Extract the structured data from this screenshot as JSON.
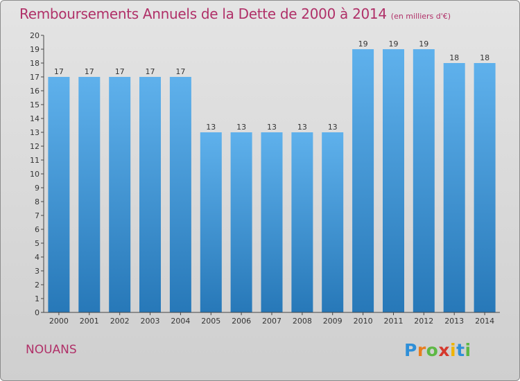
{
  "chart_data": {
    "type": "bar",
    "title": "Remboursements Annuels de la Dette de 2000 à 2014",
    "unit_note": "(en milliers d'€)",
    "categories": [
      "2000",
      "2001",
      "2002",
      "2003",
      "2004",
      "2005",
      "2006",
      "2007",
      "2008",
      "2009",
      "2010",
      "2011",
      "2012",
      "2013",
      "2014"
    ],
    "values": [
      17,
      17,
      17,
      17,
      17,
      13,
      13,
      13,
      13,
      13,
      19,
      19,
      19,
      18,
      18
    ],
    "ylim": [
      0,
      20
    ],
    "yticks": [
      "0",
      "1",
      "2",
      "3",
      "4",
      "5",
      "6",
      "7",
      "8",
      "9",
      "10",
      "11",
      "12",
      "13",
      "14",
      "15",
      "16",
      "17",
      "18",
      "19",
      "20"
    ],
    "xlabel": "",
    "ylabel": "",
    "grid": false,
    "colors": {
      "bar_top": "#5fb1ec",
      "bar_bottom": "#2778b8",
      "title": "#b03068"
    }
  },
  "footer": {
    "commune": "NOUANS",
    "logo_letters": [
      {
        "ch": "P",
        "color": "#2e8fd8"
      },
      {
        "ch": "r",
        "color": "#e87d1e"
      },
      {
        "ch": "o",
        "color": "#5db844"
      },
      {
        "ch": "x",
        "color": "#d5382c"
      },
      {
        "ch": "i",
        "color": "#f0b400"
      },
      {
        "ch": "t",
        "color": "#2e8fd8"
      },
      {
        "ch": "i",
        "color": "#5db844"
      }
    ]
  }
}
